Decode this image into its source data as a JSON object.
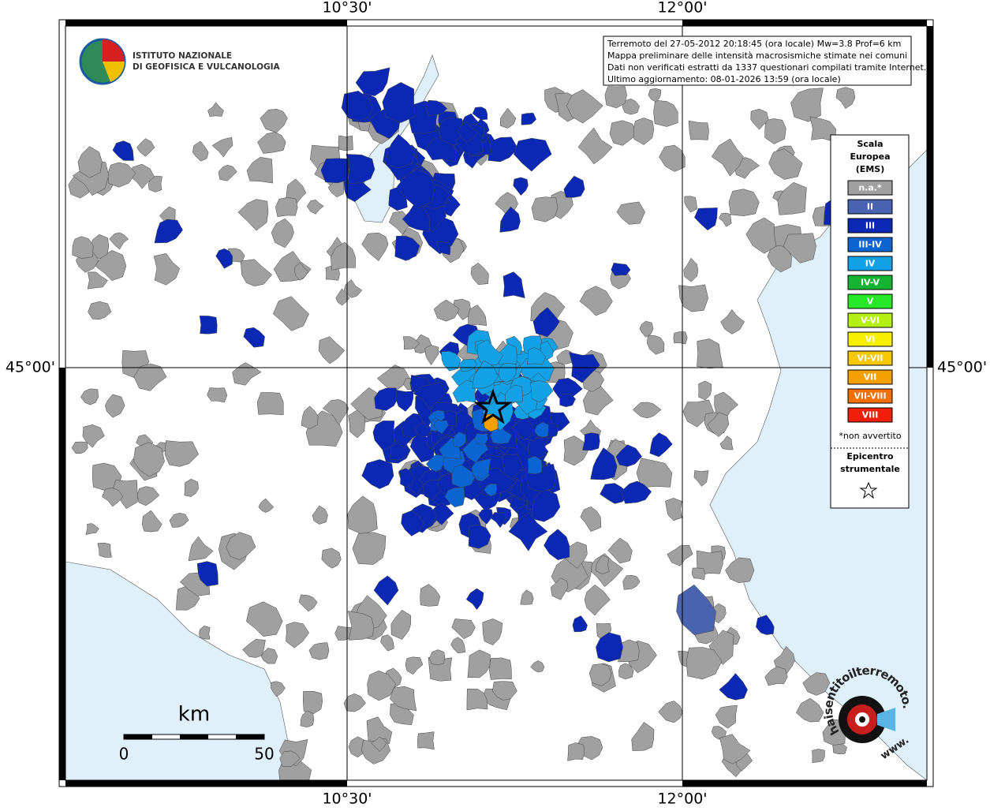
{
  "map": {
    "frame_labels": {
      "top": [
        "10°30'",
        "12°00'"
      ],
      "bottom": [
        "10°30'",
        "12°00'"
      ],
      "left": [
        "45°00'"
      ],
      "right": [
        "45°00'"
      ]
    },
    "info_box": [
      "Terremoto del 27-05-2012 20:18:45 (ora locale) Mw=3.8 Prof=6 km",
      "Mappa preliminare delle intensità macrosismiche stimate nei comuni",
      "Dati non verificati estratti da 1337 questionari compilati tramite Internet.",
      "Ultimo aggiornamento: 08-01-2026 13:59 (ora locale)"
    ],
    "institute": [
      "ISTITUTO NAZIONALE",
      "DI GEOFISICA E VULCANOLOGIA"
    ],
    "legend": {
      "title": [
        "Scala",
        "Europea",
        "(EMS)"
      ],
      "items": [
        {
          "label": "n.a.*",
          "color": "#a0a0a0"
        },
        {
          "label": "II",
          "color": "#4a63b0"
        },
        {
          "label": "III",
          "color": "#0a28b4"
        },
        {
          "label": "III-IV",
          "color": "#0a64d2"
        },
        {
          "label": "IV",
          "color": "#12a0e6"
        },
        {
          "label": "IV-V",
          "color": "#14b432"
        },
        {
          "label": "V",
          "color": "#28e628"
        },
        {
          "label": "V-VI",
          "color": "#b4f014"
        },
        {
          "label": "VI",
          "color": "#f5f000"
        },
        {
          "label": "VI-VII",
          "color": "#f5c800"
        },
        {
          "label": "VII",
          "color": "#f5a000"
        },
        {
          "label": "VII-VIII",
          "color": "#f56e00"
        },
        {
          "label": "VIII",
          "color": "#f01e0a"
        }
      ],
      "note": "*non avvertito",
      "epicenter": [
        "Epicentro",
        "strumentale"
      ]
    },
    "scale_bar": {
      "unit": "km",
      "start": 0,
      "end": 50
    },
    "site_logo": {
      "text": "haisentitoilterremoto.it",
      "prefix": "www."
    }
  }
}
